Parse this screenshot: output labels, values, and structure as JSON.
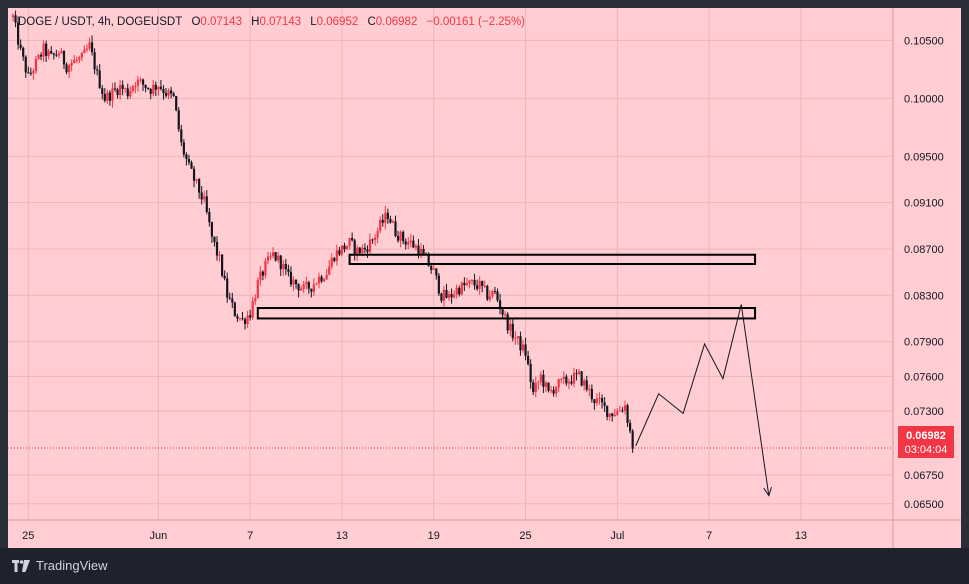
{
  "header": {
    "symbol": "DOGE / USDT, 4h, DOGEUSDT",
    "open_label": "O",
    "open": "0.07143",
    "high_label": "H",
    "high": "0.07143",
    "low_label": "L",
    "low": "0.06952",
    "close_label": "C",
    "close": "0.06982",
    "change": "−0.00161 (−2.25%)"
  },
  "price_tag": {
    "price": "0.06982",
    "countdown": "03:04:04"
  },
  "footer": {
    "logo_text": "TradingView"
  },
  "colors": {
    "background": "#ffcdd2",
    "up_candle": "#f23645",
    "down_candle": "#131722",
    "price_tag": "#f23645",
    "frame": "#2a2e39"
  },
  "chart_data": {
    "type": "candlestick",
    "symbol": "DOGEUSDT",
    "interval": "4h",
    "ylim": [
      0.0636,
      0.1078
    ],
    "x_ticks": [
      "25",
      "Jun",
      "7",
      "13",
      "19",
      "25",
      "Jul",
      "7",
      "13"
    ],
    "y_ticks": [
      "0.10500",
      "0.10000",
      "0.09500",
      "0.09100",
      "0.08700",
      "0.08300",
      "0.07900",
      "0.07600",
      "0.07300",
      "0.06750",
      "0.06500"
    ],
    "current_price": 0.06982,
    "price_path_days": [
      [
        0,
        0.107
      ],
      [
        0.5,
        0.104
      ],
      [
        1,
        0.1018
      ],
      [
        1.5,
        0.103
      ],
      [
        2,
        0.1042
      ],
      [
        2.5,
        0.1035
      ],
      [
        3,
        0.104
      ],
      [
        3.5,
        0.1028
      ],
      [
        4,
        0.1032
      ],
      [
        4.5,
        0.1034
      ],
      [
        5,
        0.1045
      ],
      [
        5.5,
        0.102
      ],
      [
        6,
        0.1
      ],
      [
        6.5,
        0.1005
      ],
      [
        7,
        0.101
      ],
      [
        7.5,
        0.1005
      ],
      [
        8,
        0.1015
      ],
      [
        8.5,
        0.1012
      ],
      [
        9,
        0.1008
      ],
      [
        9.5,
        0.1012
      ],
      [
        10,
        0.1005
      ],
      [
        10.5,
        0.1
      ],
      [
        11,
        0.096
      ],
      [
        11.5,
        0.094
      ],
      [
        12,
        0.0925
      ],
      [
        12.5,
        0.091
      ],
      [
        13,
        0.088
      ],
      [
        13.5,
        0.086
      ],
      [
        14,
        0.083
      ],
      [
        14.5,
        0.0815
      ],
      [
        15,
        0.0808
      ],
      [
        15.5,
        0.0815
      ],
      [
        16,
        0.084
      ],
      [
        16.5,
        0.0855
      ],
      [
        17,
        0.0865
      ],
      [
        17.5,
        0.0858
      ],
      [
        18,
        0.0845
      ],
      [
        18.5,
        0.084
      ],
      [
        19,
        0.0835
      ],
      [
        19.5,
        0.0838
      ],
      [
        20,
        0.0845
      ],
      [
        20.5,
        0.085
      ],
      [
        21,
        0.0865
      ],
      [
        21.5,
        0.087
      ],
      [
        22,
        0.0875
      ],
      [
        22.5,
        0.0868
      ],
      [
        23,
        0.087
      ],
      [
        23.5,
        0.0878
      ],
      [
        24,
        0.089
      ],
      [
        24.5,
        0.09
      ],
      [
        25,
        0.0885
      ],
      [
        25.5,
        0.0878
      ],
      [
        26,
        0.0875
      ],
      [
        26.5,
        0.087
      ],
      [
        27,
        0.086
      ],
      [
        27.5,
        0.085
      ],
      [
        28,
        0.083
      ],
      [
        28.5,
        0.0828
      ],
      [
        29,
        0.0835
      ],
      [
        29.5,
        0.0838
      ],
      [
        30,
        0.084
      ],
      [
        30.5,
        0.0838
      ],
      [
        31,
        0.083
      ],
      [
        31.5,
        0.0832
      ],
      [
        32,
        0.0815
      ],
      [
        32.5,
        0.08
      ],
      [
        33,
        0.079
      ],
      [
        33.5,
        0.078
      ],
      [
        34,
        0.0745
      ],
      [
        34.5,
        0.076
      ],
      [
        35,
        0.0745
      ],
      [
        35.5,
        0.0752
      ],
      [
        36,
        0.0755
      ],
      [
        36.5,
        0.0758
      ],
      [
        37,
        0.076
      ],
      [
        37.5,
        0.075
      ],
      [
        38,
        0.074
      ],
      [
        38.5,
        0.0735
      ],
      [
        39,
        0.0728
      ],
      [
        39.5,
        0.073
      ],
      [
        40,
        0.0735
      ],
      [
        40.5,
        0.07
      ]
    ],
    "zones": [
      {
        "y_top": 0.0865,
        "y_bottom": 0.0857,
        "x_start_day": 22,
        "x_end_day": 48.5
      },
      {
        "y_top": 0.0819,
        "y_bottom": 0.081,
        "x_start_day": 16,
        "x_end_day": 48.5
      }
    ],
    "projection_path": [
      [
        40.7,
        0.07
      ],
      [
        42.2,
        0.0745
      ],
      [
        43.8,
        0.0728
      ],
      [
        45.2,
        0.0788
      ],
      [
        46.4,
        0.0758
      ],
      [
        47.6,
        0.0822
      ],
      [
        49.4,
        0.0657
      ]
    ]
  }
}
